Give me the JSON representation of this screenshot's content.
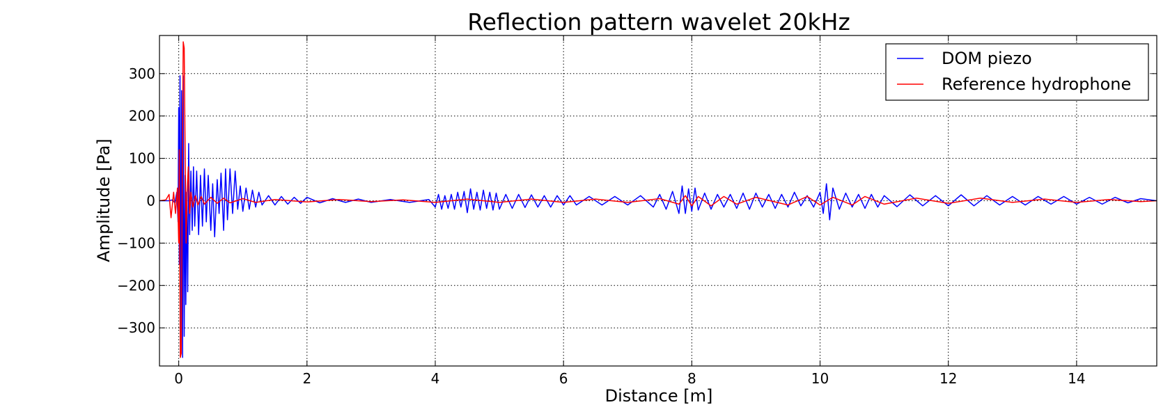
{
  "chart_data": {
    "type": "line",
    "title": "Reflection pattern wavelet 20kHz",
    "xlabel": "Distance [m]",
    "ylabel": "Amplitude [Pa]",
    "xlim": [
      -0.3,
      15.25
    ],
    "ylim": [
      -390,
      390
    ],
    "xticks": [
      0,
      2,
      4,
      6,
      8,
      10,
      12,
      14
    ],
    "yticks": [
      -300,
      -200,
      -100,
      0,
      100,
      200,
      300
    ],
    "ytick_labels": [
      "−300",
      "−200",
      "−100",
      "0",
      "100",
      "200",
      "300"
    ],
    "grid": true,
    "legend_position": "top-right",
    "series": [
      {
        "name": "DOM piezo",
        "color": "#0000ff",
        "points": [
          [
            -0.3,
            0
          ],
          [
            -0.15,
            0
          ],
          [
            -0.1,
            2
          ],
          [
            -0.06,
            -5
          ],
          [
            -0.03,
            20
          ],
          [
            -0.01,
            -50
          ],
          [
            0.0,
            220
          ],
          [
            0.01,
            -150
          ],
          [
            0.02,
            295
          ],
          [
            0.03,
            -360
          ],
          [
            0.045,
            260
          ],
          [
            0.06,
            -370
          ],
          [
            0.07,
            295
          ],
          [
            0.085,
            -320
          ],
          [
            0.1,
            60
          ],
          [
            0.11,
            -245
          ],
          [
            0.125,
            20
          ],
          [
            0.14,
            -215
          ],
          [
            0.155,
            135
          ],
          [
            0.17,
            -80
          ],
          [
            0.19,
            70
          ],
          [
            0.21,
            -70
          ],
          [
            0.23,
            80
          ],
          [
            0.25,
            -60
          ],
          [
            0.28,
            70
          ],
          [
            0.31,
            -80
          ],
          [
            0.34,
            60
          ],
          [
            0.37,
            -60
          ],
          [
            0.4,
            75
          ],
          [
            0.43,
            -50
          ],
          [
            0.46,
            60
          ],
          [
            0.5,
            -70
          ],
          [
            0.53,
            40
          ],
          [
            0.56,
            -85
          ],
          [
            0.6,
            50
          ],
          [
            0.63,
            -30
          ],
          [
            0.66,
            65
          ],
          [
            0.7,
            -70
          ],
          [
            0.73,
            75
          ],
          [
            0.76,
            -45
          ],
          [
            0.8,
            75
          ],
          [
            0.84,
            -30
          ],
          [
            0.88,
            70
          ],
          [
            0.92,
            -20
          ],
          [
            0.96,
            35
          ],
          [
            1.0,
            -25
          ],
          [
            1.05,
            30
          ],
          [
            1.1,
            -20
          ],
          [
            1.15,
            25
          ],
          [
            1.2,
            -15
          ],
          [
            1.25,
            20
          ],
          [
            1.3,
            -10
          ],
          [
            1.4,
            12
          ],
          [
            1.5,
            -10
          ],
          [
            1.6,
            10
          ],
          [
            1.7,
            -8
          ],
          [
            1.8,
            8
          ],
          [
            1.9,
            -6
          ],
          [
            2.0,
            8
          ],
          [
            2.2,
            -5
          ],
          [
            2.4,
            5
          ],
          [
            2.6,
            -4
          ],
          [
            2.8,
            4
          ],
          [
            3.0,
            -4
          ],
          [
            3.3,
            3
          ],
          [
            3.6,
            -4
          ],
          [
            3.9,
            3
          ],
          [
            4.0,
            -15
          ],
          [
            4.05,
            15
          ],
          [
            4.1,
            -20
          ],
          [
            4.15,
            12
          ],
          [
            4.2,
            -18
          ],
          [
            4.25,
            15
          ],
          [
            4.3,
            -20
          ],
          [
            4.35,
            20
          ],
          [
            4.4,
            -15
          ],
          [
            4.45,
            22
          ],
          [
            4.5,
            -28
          ],
          [
            4.55,
            28
          ],
          [
            4.6,
            -20
          ],
          [
            4.65,
            20
          ],
          [
            4.7,
            -22
          ],
          [
            4.75,
            25
          ],
          [
            4.8,
            -18
          ],
          [
            4.85,
            20
          ],
          [
            4.9,
            -22
          ],
          [
            4.95,
            18
          ],
          [
            5.0,
            -20
          ],
          [
            5.1,
            15
          ],
          [
            5.2,
            -18
          ],
          [
            5.3,
            15
          ],
          [
            5.4,
            -16
          ],
          [
            5.5,
            14
          ],
          [
            5.6,
            -15
          ],
          [
            5.7,
            12
          ],
          [
            5.8,
            -15
          ],
          [
            5.9,
            12
          ],
          [
            6.0,
            -10
          ],
          [
            6.1,
            12
          ],
          [
            6.2,
            -10
          ],
          [
            6.4,
            10
          ],
          [
            6.6,
            -10
          ],
          [
            6.8,
            10
          ],
          [
            7.0,
            -10
          ],
          [
            7.2,
            12
          ],
          [
            7.4,
            -15
          ],
          [
            7.5,
            15
          ],
          [
            7.6,
            -20
          ],
          [
            7.7,
            22
          ],
          [
            7.8,
            -30
          ],
          [
            7.85,
            35
          ],
          [
            7.9,
            -30
          ],
          [
            7.95,
            28
          ],
          [
            8.0,
            -25
          ],
          [
            8.05,
            30
          ],
          [
            8.1,
            -22
          ],
          [
            8.2,
            18
          ],
          [
            8.3,
            -20
          ],
          [
            8.4,
            15
          ],
          [
            8.5,
            -15
          ],
          [
            8.6,
            15
          ],
          [
            8.7,
            -18
          ],
          [
            8.8,
            18
          ],
          [
            8.9,
            -20
          ],
          [
            9.0,
            18
          ],
          [
            9.1,
            -15
          ],
          [
            9.2,
            15
          ],
          [
            9.3,
            -18
          ],
          [
            9.4,
            15
          ],
          [
            9.5,
            -15
          ],
          [
            9.6,
            20
          ],
          [
            9.7,
            -12
          ],
          [
            9.8,
            12
          ],
          [
            9.9,
            -15
          ],
          [
            10.0,
            20
          ],
          [
            10.05,
            -30
          ],
          [
            10.1,
            40
          ],
          [
            10.15,
            -45
          ],
          [
            10.2,
            30
          ],
          [
            10.3,
            -20
          ],
          [
            10.4,
            18
          ],
          [
            10.5,
            -15
          ],
          [
            10.6,
            15
          ],
          [
            10.7,
            -18
          ],
          [
            10.8,
            15
          ],
          [
            10.9,
            -15
          ],
          [
            11.0,
            12
          ],
          [
            11.2,
            -14
          ],
          [
            11.4,
            14
          ],
          [
            11.6,
            -12
          ],
          [
            11.8,
            12
          ],
          [
            12.0,
            -12
          ],
          [
            12.2,
            14
          ],
          [
            12.4,
            -12
          ],
          [
            12.6,
            12
          ],
          [
            12.8,
            -10
          ],
          [
            13.0,
            10
          ],
          [
            13.2,
            -10
          ],
          [
            13.4,
            10
          ],
          [
            13.6,
            -8
          ],
          [
            13.8,
            10
          ],
          [
            14.0,
            -8
          ],
          [
            14.2,
            8
          ],
          [
            14.4,
            -8
          ],
          [
            14.6,
            8
          ],
          [
            14.8,
            -5
          ],
          [
            15.0,
            5
          ],
          [
            15.25,
            0
          ]
        ]
      },
      {
        "name": "Reference hydrophone",
        "color": "#ff0000",
        "points": [
          [
            -0.3,
            0
          ],
          [
            -0.2,
            2
          ],
          [
            -0.15,
            15
          ],
          [
            -0.12,
            -40
          ],
          [
            -0.08,
            20
          ],
          [
            -0.05,
            -30
          ],
          [
            -0.02,
            30
          ],
          [
            0.0,
            -100
          ],
          [
            0.01,
            120
          ],
          [
            0.025,
            -370
          ],
          [
            0.04,
            -360
          ],
          [
            0.055,
            60
          ],
          [
            0.07,
            375
          ],
          [
            0.085,
            360
          ],
          [
            0.1,
            120
          ],
          [
            0.115,
            -100
          ],
          [
            0.13,
            20
          ],
          [
            0.15,
            80
          ],
          [
            0.17,
            -30
          ],
          [
            0.19,
            20
          ],
          [
            0.22,
            -15
          ],
          [
            0.26,
            12
          ],
          [
            0.3,
            -10
          ],
          [
            0.35,
            10
          ],
          [
            0.4,
            -8
          ],
          [
            0.5,
            8
          ],
          [
            0.6,
            -6
          ],
          [
            0.7,
            6
          ],
          [
            0.8,
            -5
          ],
          [
            1.0,
            5
          ],
          [
            1.2,
            -4
          ],
          [
            1.5,
            3
          ],
          [
            2.0,
            -3
          ],
          [
            2.5,
            3
          ],
          [
            3.0,
            -2
          ],
          [
            3.5,
            2
          ],
          [
            4.0,
            -4
          ],
          [
            4.5,
            4
          ],
          [
            5.0,
            -4
          ],
          [
            5.5,
            4
          ],
          [
            6.0,
            -4
          ],
          [
            6.5,
            4
          ],
          [
            7.0,
            -4
          ],
          [
            7.5,
            5
          ],
          [
            7.8,
            -8
          ],
          [
            7.9,
            12
          ],
          [
            8.0,
            -12
          ],
          [
            8.1,
            10
          ],
          [
            8.3,
            -12
          ],
          [
            8.5,
            10
          ],
          [
            8.7,
            -8
          ],
          [
            9.0,
            8
          ],
          [
            9.5,
            -10
          ],
          [
            9.8,
            10
          ],
          [
            10.0,
            -10
          ],
          [
            10.2,
            8
          ],
          [
            10.5,
            -10
          ],
          [
            10.7,
            10
          ],
          [
            11.0,
            -8
          ],
          [
            11.5,
            6
          ],
          [
            12.0,
            -6
          ],
          [
            12.5,
            6
          ],
          [
            13.0,
            -4
          ],
          [
            13.5,
            4
          ],
          [
            14.0,
            -4
          ],
          [
            14.5,
            3
          ],
          [
            15.0,
            -2
          ],
          [
            15.25,
            0
          ]
        ]
      }
    ]
  }
}
